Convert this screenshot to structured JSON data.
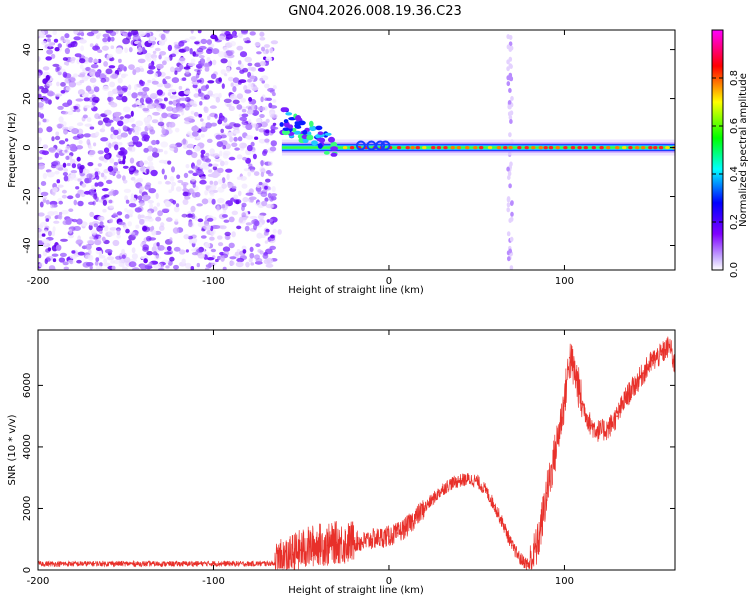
{
  "title": "GN04.2026.008.19.36.C23",
  "colors": {
    "snr_line": "#e8302a",
    "frame": "#000000",
    "background": "#ffffff"
  },
  "chart_data": [
    {
      "type": "heatmap",
      "id": "spectrogram",
      "xlabel": "Height of straight line (km)",
      "ylabel": "Frequency (Hz)",
      "xlim": [
        -200,
        163
      ],
      "ylim": [
        -50,
        48
      ],
      "xticks": [
        -200,
        -100,
        0,
        100
      ],
      "yticks": [
        -40,
        -20,
        0,
        20,
        40
      ],
      "colorbar": {
        "label": "Normalized spectral amplitude",
        "range": [
          0,
          1
        ],
        "ticks": [
          0.0,
          0.2,
          0.4,
          0.6,
          0.8
        ],
        "colormap": [
          "#ffffff",
          "#8000ff",
          "#0000ff",
          "#00ffff",
          "#00ff00",
          "#ffff00",
          "#ff0000",
          "#ff00ff"
        ]
      },
      "features": {
        "noise_region_x": [
          -200,
          -65
        ],
        "carrier_frequency_hz": 0,
        "carrier_x_range": [
          -65,
          163
        ],
        "vertical_stripe_x": 69
      }
    },
    {
      "type": "line",
      "id": "snr",
      "xlabel": "Height of straight line (km)",
      "ylabel": "SNR (10 * v/v)",
      "xlim": [
        -200,
        163
      ],
      "ylim": [
        0,
        7800
      ],
      "xticks": [
        -200,
        -100,
        0,
        100
      ],
      "yticks": [
        0,
        2000,
        4000,
        6000
      ],
      "series": [
        {
          "name": "SNR",
          "x": [
            -200,
            -180,
            -160,
            -140,
            -120,
            -100,
            -80,
            -65,
            -60,
            -55,
            -50,
            -45,
            -40,
            -35,
            -30,
            -25,
            -20,
            -15,
            -10,
            -5,
            0,
            5,
            10,
            15,
            20,
            25,
            30,
            35,
            40,
            45,
            50,
            55,
            60,
            65,
            70,
            75,
            80,
            85,
            90,
            95,
            100,
            103,
            107,
            110,
            115,
            120,
            125,
            130,
            135,
            140,
            145,
            150,
            155,
            160,
            163
          ],
          "y": [
            200,
            200,
            210,
            200,
            200,
            210,
            200,
            220,
            350,
            500,
            650,
            750,
            850,
            800,
            900,
            850,
            950,
            900,
            1000,
            1050,
            1100,
            1200,
            1400,
            1700,
            2000,
            2300,
            2600,
            2800,
            2900,
            2950,
            2900,
            2600,
            2100,
            1500,
            800,
            350,
            150,
            900,
            2500,
            3900,
            5500,
            6900,
            6200,
            5400,
            4700,
            4500,
            4600,
            5000,
            5600,
            6000,
            6400,
            6800,
            7000,
            7300,
            6600
          ]
        }
      ]
    }
  ]
}
